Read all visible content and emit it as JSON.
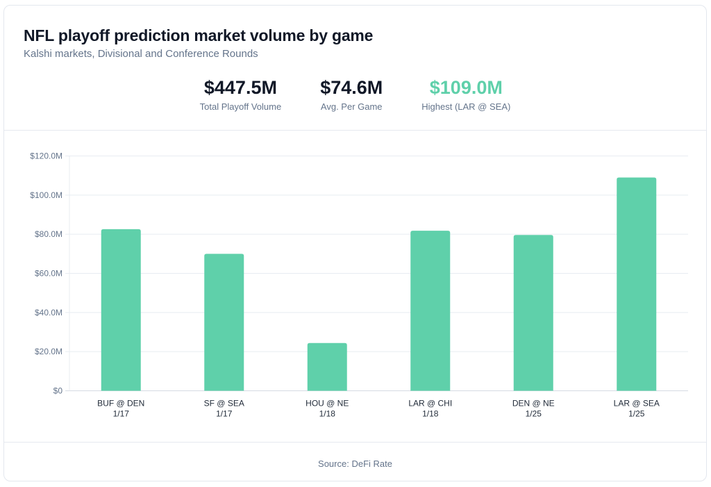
{
  "header": {
    "title": "NFL playoff prediction market volume by game",
    "subtitle": "Kalshi markets, Divisional and Conference Rounds"
  },
  "stats": [
    {
      "value": "$447.5M",
      "label": "Total Playoff Volume",
      "accent": false
    },
    {
      "value": "$74.6M",
      "label": "Avg. Per Game",
      "accent": false
    },
    {
      "value": "$109.0M",
      "label": "Highest (LAR @ SEA)",
      "accent": true
    }
  ],
  "colors": {
    "bar": "#5fd0aa",
    "accent": "#5fd0aa",
    "grid": "#e8ecf1",
    "axis_text": "#64748b",
    "category_text": "#1f2937"
  },
  "chart_data": {
    "type": "bar",
    "title": "NFL playoff prediction market volume by game",
    "subtitle": "Kalshi markets, Divisional and Conference Rounds",
    "xlabel": "",
    "ylabel": "",
    "categories": [
      {
        "matchup": "BUF @ DEN",
        "date": "1/17"
      },
      {
        "matchup": "SF @ SEA",
        "date": "1/17"
      },
      {
        "matchup": "HOU @ NE",
        "date": "1/18"
      },
      {
        "matchup": "LAR @ CHI",
        "date": "1/18"
      },
      {
        "matchup": "DEN @ NE",
        "date": "1/25"
      },
      {
        "matchup": "LAR @ SEA",
        "date": "1/25"
      }
    ],
    "values": [
      82.6,
      70.0,
      24.4,
      81.8,
      79.6,
      109.0
    ],
    "unit": "$M",
    "ylim": [
      0,
      120
    ],
    "yticks": [
      0,
      20,
      40,
      60,
      80,
      100,
      120
    ],
    "ytick_labels": [
      "$0",
      "$20.0M",
      "$40.0M",
      "$60.0M",
      "$80.0M",
      "$100.0M",
      "$120.0M"
    ],
    "grid": true,
    "legend": "none"
  },
  "footer": {
    "source": "Source: DeFi Rate"
  }
}
